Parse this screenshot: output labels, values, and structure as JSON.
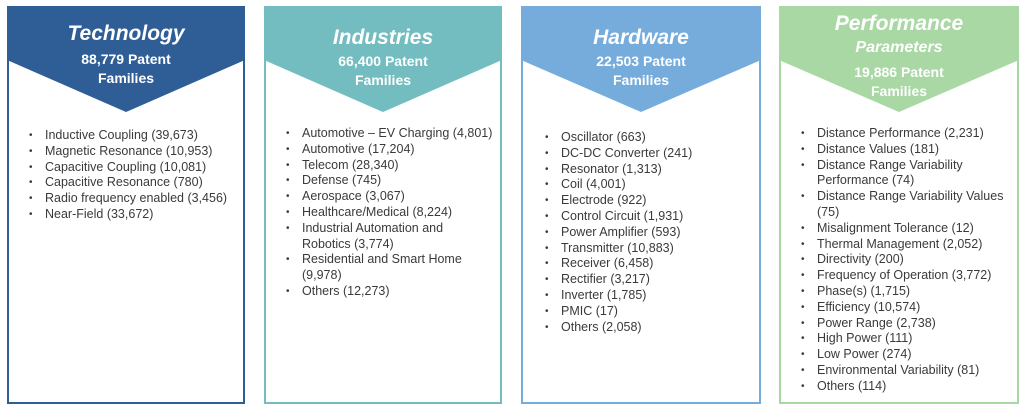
{
  "columns": [
    {
      "title": "Technology",
      "subtitle_1": "88,779 Patent",
      "subtitle_2": "Families",
      "color": "#2f5e97",
      "items": [
        "Inductive Coupling (39,673)",
        "Magnetic Resonance (10,953)",
        "Capacitive Coupling (10,081)",
        "Capacitive Resonance (780)",
        "Radio frequency enabled (3,456)",
        "Near-Field (33,672)"
      ]
    },
    {
      "title": "Industries",
      "subtitle_1": "66,400 Patent",
      "subtitle_2": "Families",
      "color": "#73bcbf",
      "items": [
        "Automotive – EV Charging (4,801)",
        "Automotive (17,204)",
        "Telecom (28,340)",
        "Defense (745)",
        "Aerospace (3,067)",
        "Healthcare/Medical (8,224)",
        "Industrial Automation and Robotics (3,774)",
        "Residential and Smart Home (9,978)",
        "Others (12,273)"
      ]
    },
    {
      "title": "Hardware",
      "subtitle_1": "22,503 Patent",
      "subtitle_2": "Families",
      "color": "#76acdc",
      "items": [
        "Oscillator (663)",
        "DC-DC Converter (241)",
        "Resonator (1,313)",
        "Coil (4,001)",
        "Electrode (922)",
        "Control Circuit (1,931)",
        "Power Amplifier (593)",
        "Transmitter (10,883)",
        "Receiver (6,458)",
        "Rectifier (3,217)",
        "Inverter (1,785)",
        "PMIC (17)",
        "Others (2,058)"
      ]
    },
    {
      "title": "Performance",
      "title_2": "Parameters",
      "subtitle_1": "19,886 Patent",
      "subtitle_2": "Families",
      "color": "#a9d8a5",
      "items": [
        "Distance Performance (2,231)",
        "Distance Values (181)",
        "Distance Range Variability Performance (74)",
        "Distance Range Variability Values (75)",
        "Misalignment Tolerance (12)",
        "Thermal Management (2,052)",
        "Directivity (200)",
        "Frequency of Operation (3,772)",
        "Phase(s) (1,715)",
        "Efficiency (10,574)",
        "Power Range (2,738)",
        "High Power (111)",
        "Low Power (274)",
        "Environmental Variability (81)",
        "Others (114)"
      ]
    }
  ]
}
